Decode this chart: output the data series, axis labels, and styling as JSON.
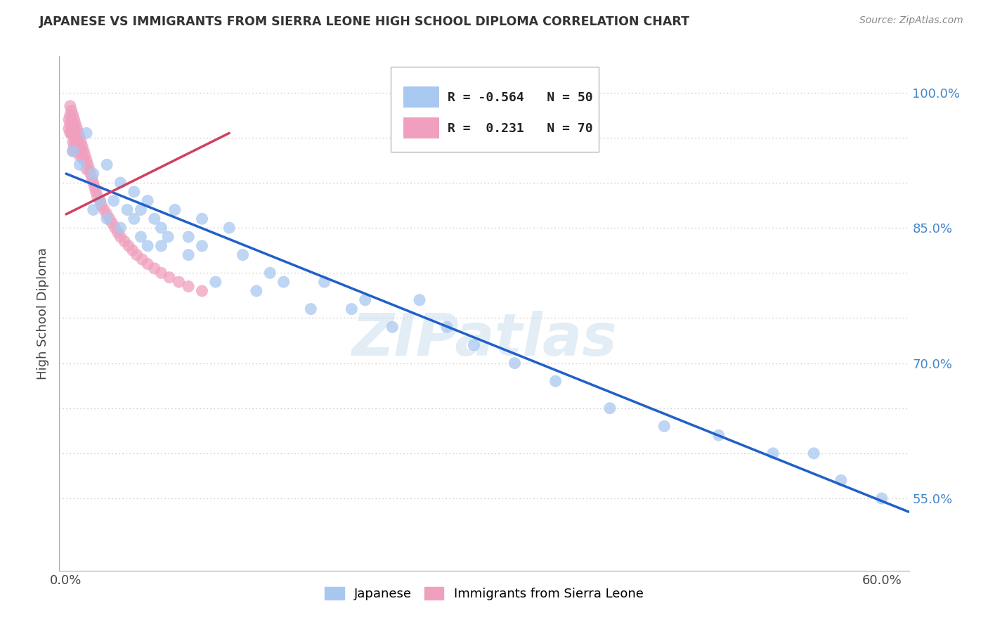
{
  "title": "JAPANESE VS IMMIGRANTS FROM SIERRA LEONE HIGH SCHOOL DIPLOMA CORRELATION CHART",
  "source": "Source: ZipAtlas.com",
  "ylabel": "High School Diploma",
  "xlim": [
    -0.005,
    0.62
  ],
  "ylim": [
    0.47,
    1.04
  ],
  "blue_color": "#A8C8F0",
  "pink_color": "#F0A0BE",
  "blue_line_color": "#2060C8",
  "pink_line_color": "#D04060",
  "watermark": "ZIPatlas",
  "legend_r_blue": "-0.564",
  "legend_n_blue": "50",
  "legend_r_pink": "0.231",
  "legend_n_pink": "70",
  "blue_scatter_x": [
    0.005,
    0.01,
    0.015,
    0.02,
    0.02,
    0.025,
    0.03,
    0.03,
    0.035,
    0.04,
    0.04,
    0.045,
    0.05,
    0.05,
    0.055,
    0.055,
    0.06,
    0.06,
    0.065,
    0.07,
    0.07,
    0.075,
    0.08,
    0.09,
    0.09,
    0.1,
    0.1,
    0.11,
    0.12,
    0.13,
    0.14,
    0.15,
    0.16,
    0.18,
    0.19,
    0.21,
    0.22,
    0.24,
    0.26,
    0.28,
    0.3,
    0.33,
    0.36,
    0.4,
    0.44,
    0.48,
    0.52,
    0.55,
    0.57,
    0.6
  ],
  "blue_scatter_y": [
    0.935,
    0.92,
    0.955,
    0.91,
    0.87,
    0.88,
    0.92,
    0.86,
    0.88,
    0.9,
    0.85,
    0.87,
    0.89,
    0.86,
    0.87,
    0.84,
    0.88,
    0.83,
    0.86,
    0.85,
    0.83,
    0.84,
    0.87,
    0.82,
    0.84,
    0.86,
    0.83,
    0.79,
    0.85,
    0.82,
    0.78,
    0.8,
    0.79,
    0.76,
    0.79,
    0.76,
    0.77,
    0.74,
    0.77,
    0.74,
    0.72,
    0.7,
    0.68,
    0.65,
    0.63,
    0.62,
    0.6,
    0.6,
    0.57,
    0.55
  ],
  "pink_scatter_x": [
    0.002,
    0.002,
    0.003,
    0.003,
    0.003,
    0.003,
    0.004,
    0.004,
    0.004,
    0.004,
    0.005,
    0.005,
    0.005,
    0.005,
    0.005,
    0.006,
    0.006,
    0.006,
    0.006,
    0.007,
    0.007,
    0.007,
    0.007,
    0.008,
    0.008,
    0.008,
    0.009,
    0.009,
    0.009,
    0.01,
    0.01,
    0.01,
    0.011,
    0.011,
    0.012,
    0.012,
    0.013,
    0.013,
    0.014,
    0.015,
    0.015,
    0.016,
    0.017,
    0.018,
    0.019,
    0.02,
    0.021,
    0.022,
    0.023,
    0.025,
    0.026,
    0.028,
    0.03,
    0.032,
    0.034,
    0.036,
    0.038,
    0.04,
    0.043,
    0.046,
    0.049,
    0.052,
    0.056,
    0.06,
    0.065,
    0.07,
    0.076,
    0.083,
    0.09,
    0.1
  ],
  "pink_scatter_y": [
    0.97,
    0.96,
    0.985,
    0.975,
    0.965,
    0.955,
    0.98,
    0.97,
    0.96,
    0.955,
    0.975,
    0.965,
    0.955,
    0.945,
    0.935,
    0.97,
    0.96,
    0.95,
    0.94,
    0.965,
    0.955,
    0.945,
    0.935,
    0.96,
    0.95,
    0.94,
    0.955,
    0.945,
    0.935,
    0.95,
    0.94,
    0.93,
    0.945,
    0.935,
    0.94,
    0.93,
    0.935,
    0.925,
    0.93,
    0.925,
    0.915,
    0.92,
    0.915,
    0.91,
    0.905,
    0.9,
    0.895,
    0.89,
    0.885,
    0.88,
    0.875,
    0.87,
    0.865,
    0.86,
    0.855,
    0.85,
    0.845,
    0.84,
    0.835,
    0.83,
    0.825,
    0.82,
    0.815,
    0.81,
    0.805,
    0.8,
    0.795,
    0.79,
    0.785,
    0.78
  ],
  "blue_trend_x": [
    0.0,
    0.62
  ],
  "blue_trend_y": [
    0.91,
    0.535
  ],
  "pink_trend_x": [
    0.0,
    0.12
  ],
  "pink_trend_y": [
    0.865,
    0.955
  ]
}
